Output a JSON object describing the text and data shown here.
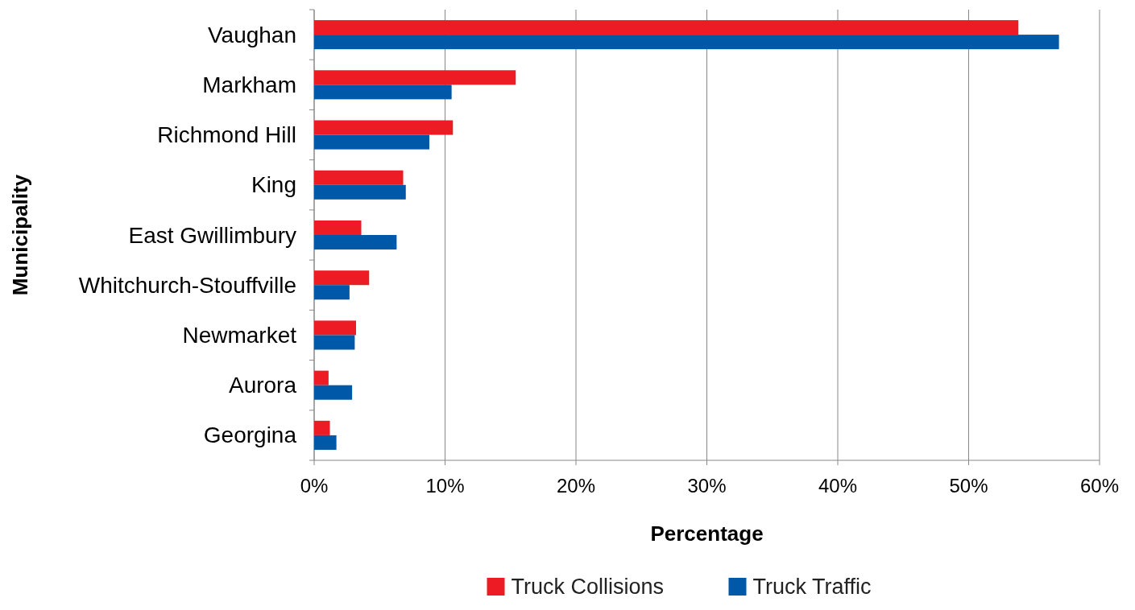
{
  "chart_data": {
    "type": "bar",
    "orientation": "horizontal",
    "xlabel": "Percentage",
    "ylabel": "Municipality",
    "categories": [
      "Vaughan",
      "Markham",
      "Richmond Hill",
      "King",
      "East Gwillimbury",
      "Whitchurch-Stouffville",
      "Newmarket",
      "Aurora",
      "Georgina"
    ],
    "series": [
      {
        "name": "Truck Collisions",
        "color": "#ed1c24",
        "values": [
          53.8,
          15.4,
          10.6,
          6.8,
          3.6,
          4.2,
          3.2,
          1.1,
          1.2
        ]
      },
      {
        "name": "Truck Traffic",
        "color": "#0058a8",
        "values": [
          56.9,
          10.5,
          8.8,
          7.0,
          6.3,
          2.7,
          3.1,
          2.9,
          1.7
        ]
      }
    ],
    "xlim": [
      0,
      60
    ],
    "xticks": [
      {
        "value": 0,
        "label": "0%"
      },
      {
        "value": 10,
        "label": "10%"
      },
      {
        "value": 20,
        "label": "20%"
      },
      {
        "value": 30,
        "label": "30%"
      },
      {
        "value": 40,
        "label": "40%"
      },
      {
        "value": 50,
        "label": "50%"
      },
      {
        "value": 60,
        "label": "60%"
      }
    ],
    "grid": "x",
    "legend": "bottom"
  }
}
